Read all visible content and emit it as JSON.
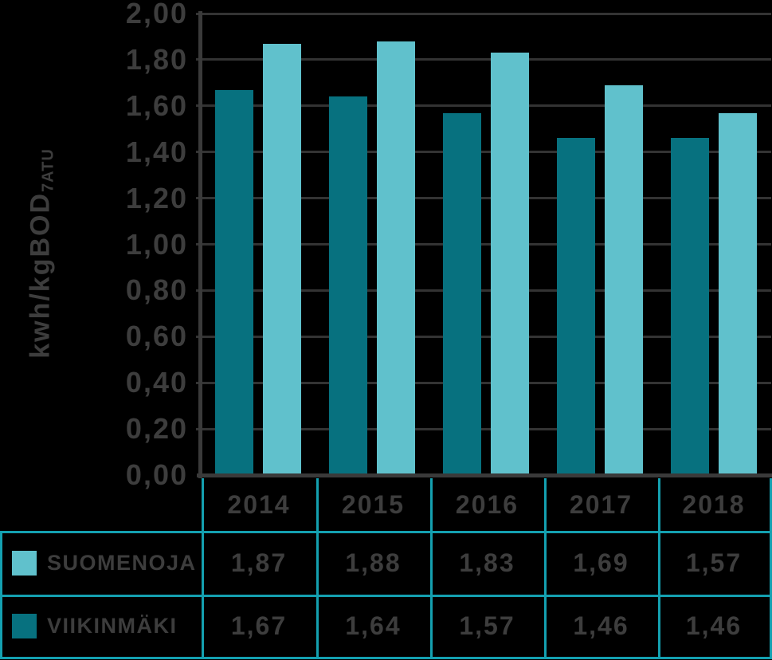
{
  "background": "#000000",
  "chart_data": {
    "type": "bar",
    "title": "",
    "ylabel": "kwh/kgBOD",
    "ylabel_subscript": "7ATU",
    "xlabel": "",
    "categories": [
      "2014",
      "2015",
      "2016",
      "2017",
      "2018"
    ],
    "series": [
      {
        "name": "VIIKINMÄKI",
        "slug": "viikinmaki",
        "color": "#07717f",
        "values": [
          1.67,
          1.64,
          1.57,
          1.46,
          1.46
        ]
      },
      {
        "name": "SUOMENOJA",
        "slug": "suomenoja",
        "color": "#60c1cc",
        "values": [
          1.87,
          1.88,
          1.83,
          1.69,
          1.57
        ]
      }
    ],
    "ylim": [
      0,
      2.0
    ],
    "ytick_step": 0.2,
    "ytick_labels": [
      "0,00",
      "0,20",
      "0,40",
      "0,60",
      "0,80",
      "1,00",
      "1,20",
      "1,40",
      "1,60",
      "1,80",
      "2,00"
    ],
    "grid": true,
    "legend_position": "table-below"
  },
  "table": {
    "rows": [
      {
        "label": "SUOMENOJA",
        "swatch_color": "#60c1cc",
        "values": [
          "1,87",
          "1,88",
          "1,83",
          "1,69",
          "1,57"
        ]
      },
      {
        "label": "VIIKINMÄKI",
        "swatch_color": "#07717f",
        "values": [
          "1,67",
          "1,64",
          "1,57",
          "1,46",
          "1,46"
        ]
      }
    ]
  },
  "colors": {
    "table_border": "#14a0b0",
    "gridline": "#333333",
    "axis": "#3a3a3a",
    "text": "#3d3d3d",
    "bar_dark": "#07717f",
    "bar_light": "#60c1cc"
  }
}
